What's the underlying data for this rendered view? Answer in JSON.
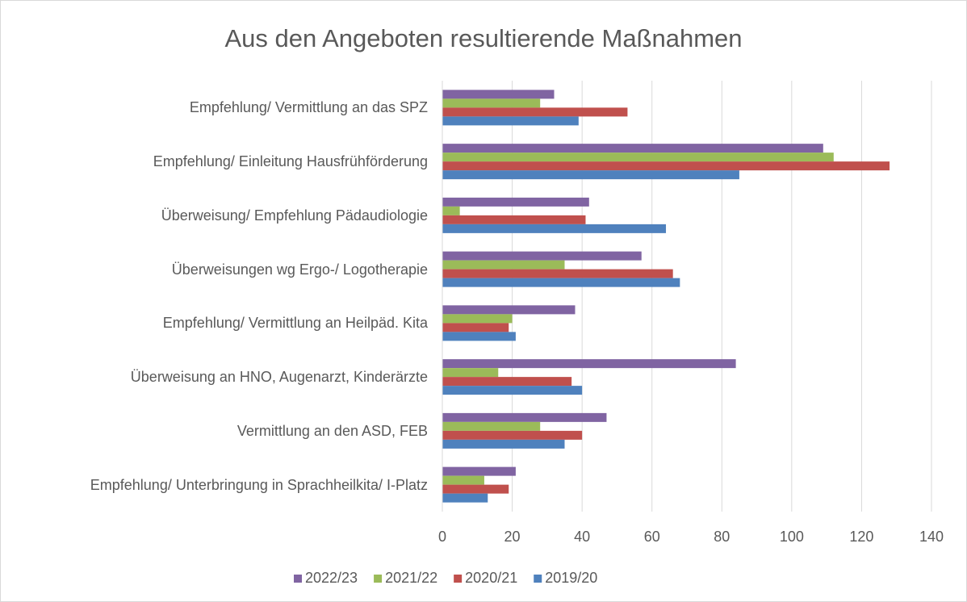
{
  "chart_data": {
    "type": "barh",
    "title": "Aus den Angeboten resultierende Maßnahmen",
    "categories": [
      "Empfehlung/ Vermittlung an das SPZ",
      "Empfehlung/ Einleitung Hausfrühförderung",
      "Überweisung/ Empfehlung Pädaudiologie",
      "Überweisungen wg Ergo-/ Logotherapie",
      "Empfehlung/ Vermittlung an Heilpäd. Kita",
      "Überweisung an HNO, Augenarzt, Kinderärzte",
      "Vermittlung an den ASD, FEB",
      "Empfehlung/ Unterbringung in Sprachheilkita/ I-Platz"
    ],
    "series": [
      {
        "name": "2022/23",
        "color": "#8064a2",
        "values": [
          32,
          109,
          42,
          57,
          38,
          84,
          47,
          21
        ]
      },
      {
        "name": "2021/22",
        "color": "#9bbb59",
        "values": [
          28,
          112,
          5,
          35,
          20,
          16,
          28,
          12
        ]
      },
      {
        "name": "2020/21",
        "color": "#c0504d",
        "values": [
          53,
          128,
          41,
          66,
          19,
          37,
          40,
          19
        ]
      },
      {
        "name": "2019/20",
        "color": "#4f81bd",
        "values": [
          39,
          85,
          64,
          68,
          21,
          40,
          35,
          13
        ]
      }
    ],
    "xlim": [
      0,
      140
    ],
    "xticks": [
      0,
      20,
      40,
      60,
      80,
      100,
      120,
      140
    ],
    "grid": true,
    "legend": "bottom"
  }
}
